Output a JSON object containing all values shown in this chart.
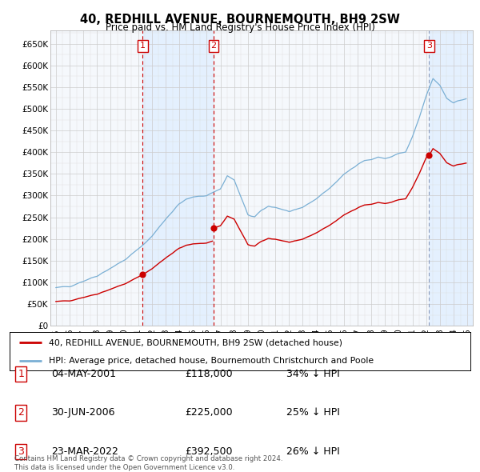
{
  "title": "40, REDHILL AVENUE, BOURNEMOUTH, BH9 2SW",
  "subtitle": "Price paid vs. HM Land Registry's House Price Index (HPI)",
  "ylim": [
    0,
    680000
  ],
  "sale_info": [
    [
      "1",
      "04-MAY-2001",
      "£118,000",
      "34% ↓ HPI"
    ],
    [
      "2",
      "30-JUN-2006",
      "£225,000",
      "25% ↓ HPI"
    ],
    [
      "3",
      "23-MAR-2022",
      "£392,500",
      "26% ↓ HPI"
    ]
  ],
  "sale_years": [
    2001.336,
    2006.497,
    2022.22
  ],
  "sale_prices": [
    118000,
    225000,
    392500
  ],
  "sale_labels": [
    "1",
    "2",
    "3"
  ],
  "legend_line1": "40, REDHILL AVENUE, BOURNEMOUTH, BH9 2SW (detached house)",
  "legend_line2": "HPI: Average price, detached house, Bournemouth Christchurch and Poole",
  "footer": "Contains HM Land Registry data © Crown copyright and database right 2024.\nThis data is licensed under the Open Government Licence v3.0.",
  "red_color": "#cc0000",
  "blue_color": "#7aafd4",
  "shade_color": "#ddeeff",
  "bg_color": "#f0f4f8",
  "grid_color": "#cccccc",
  "white_grid": "#ffffff",
  "box_color": "#cc0000",
  "hpi_start": 1995.0,
  "hpi_end": 2025.0,
  "xlim_left": 1994.6,
  "xlim_right": 2025.4
}
